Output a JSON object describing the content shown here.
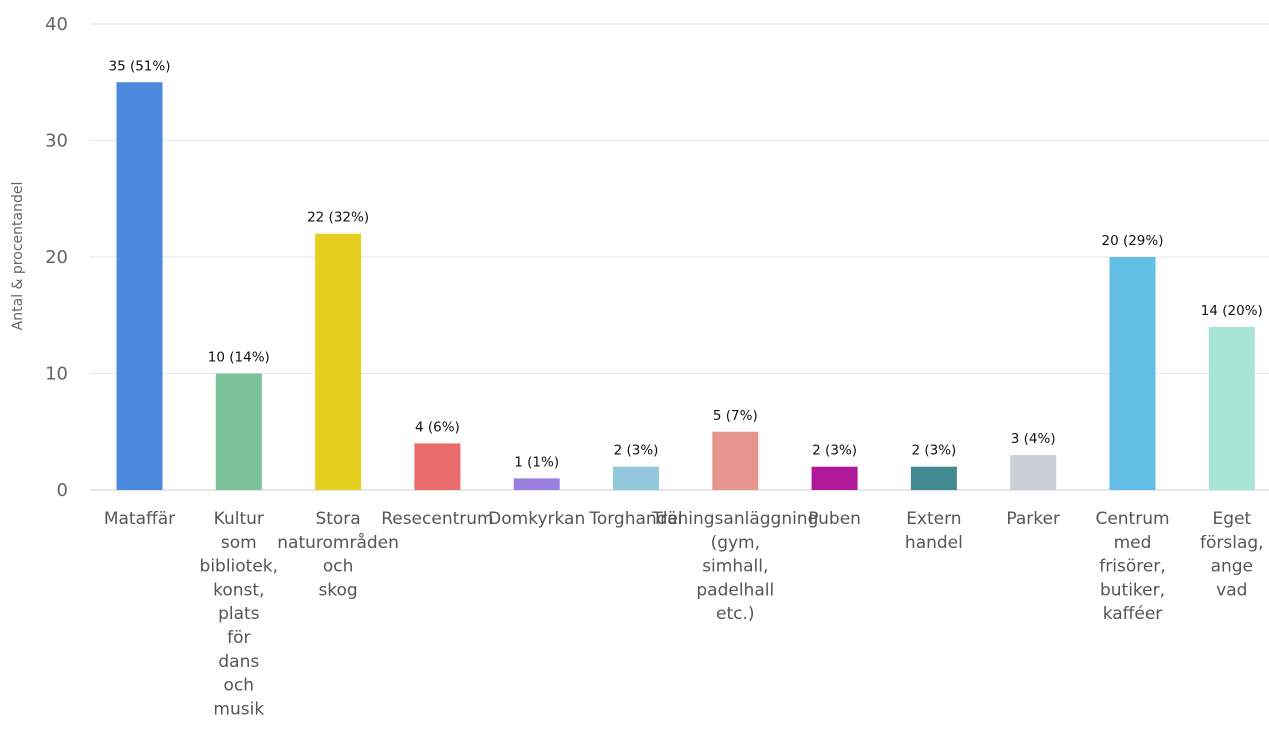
{
  "chart_data": {
    "type": "bar",
    "ylabel": "Antal & procentandel",
    "ylim": [
      0,
      40
    ],
    "yticks": [
      0,
      10,
      20,
      30,
      40
    ],
    "grid": true,
    "categories": [
      "Mataffär",
      "Kultur som bibliotek, konst, plats för dans och musik",
      "Stora naturområden och skog",
      "Resecentrum",
      "Domkyrkan",
      "Torghandel",
      "Träningsanläggning (gym, simhall, padelhall etc.)",
      "Puben",
      "Extern handel",
      "Parker",
      "Centrum med frisörer, butiker, kafféer",
      "Eget förslag, ange vad"
    ],
    "category_lines": [
      [
        "Mataffär"
      ],
      [
        "Kultur",
        "som",
        "bibliotek,",
        "konst,",
        "plats",
        "för",
        "dans",
        "och",
        "musik"
      ],
      [
        "Stora",
        "naturområden",
        "och",
        "skog"
      ],
      [
        "Resecentrum"
      ],
      [
        "Domkyrkan"
      ],
      [
        "Torghandel"
      ],
      [
        "Träningsanläggning",
        "(gym,",
        "simhall,",
        "padelhall",
        "etc.)"
      ],
      [
        "Puben"
      ],
      [
        "Extern",
        "handel"
      ],
      [
        "Parker"
      ],
      [
        "Centrum",
        "med",
        "frisörer,",
        "butiker,",
        "kafféer"
      ],
      [
        "Eget",
        "förslag,",
        "ange",
        "vad"
      ]
    ],
    "values": [
      35,
      10,
      22,
      4,
      1,
      2,
      5,
      2,
      2,
      3,
      20,
      14
    ],
    "data_labels": [
      "35 (51%)",
      "10 (14%)",
      "22 (32%)",
      "4 (6%)",
      "1 (1%)",
      "2 (3%)",
      "5 (7%)",
      "2 (3%)",
      "2 (3%)",
      "3 (4%)",
      "20 (29%)",
      "14 (20%)"
    ],
    "colors": [
      "#4a89dc",
      "#7dc19a",
      "#e5d020",
      "#e96b6b",
      "#9b7fe0",
      "#93c7dc",
      "#e6958e",
      "#b0199a",
      "#438991",
      "#cbd0d8",
      "#62bee4",
      "#a9e5d7"
    ]
  }
}
